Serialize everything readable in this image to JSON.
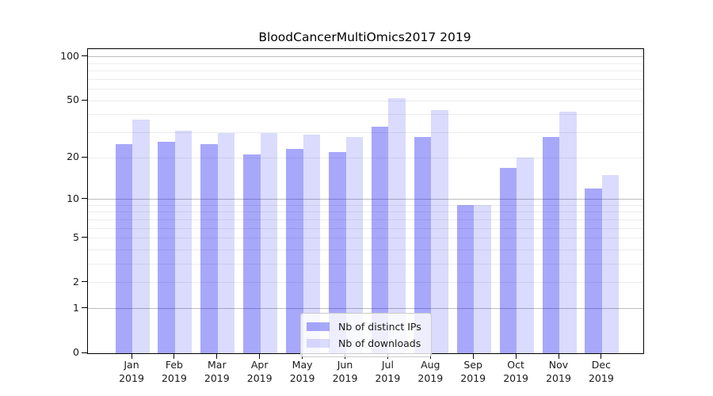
{
  "chart_data": {
    "type": "bar",
    "title": "BloodCancerMultiOmics2017 2019",
    "categories": [
      "Jan",
      "Feb",
      "Mar",
      "Apr",
      "May",
      "Jun",
      "Jul",
      "Aug",
      "Sep",
      "Oct",
      "Nov",
      "Dec"
    ],
    "x_tick_year": "2019",
    "series": [
      {
        "name": "Nb of distinct IPs",
        "color": "#0000f0",
        "alpha": 0.34,
        "values": [
          25,
          26,
          25,
          21,
          23,
          22,
          33,
          28,
          9,
          17,
          28,
          12
        ]
      },
      {
        "name": "Nb of downloads",
        "color": "#0000f0",
        "alpha": 0.14,
        "values": [
          37,
          31,
          30,
          30,
          29,
          28,
          52,
          43,
          9,
          20,
          42,
          15
        ]
      }
    ],
    "y_ticks": [
      0,
      1,
      2,
      5,
      10,
      20,
      50,
      100
    ],
    "y_scale": "log10(1+x)",
    "y_max": 113,
    "grid": true,
    "grid_major_color": "#bdbdbd",
    "grid_minor_color": "#ececec",
    "legend_position": "lower-center-inside",
    "axis_color": "#000000"
  }
}
